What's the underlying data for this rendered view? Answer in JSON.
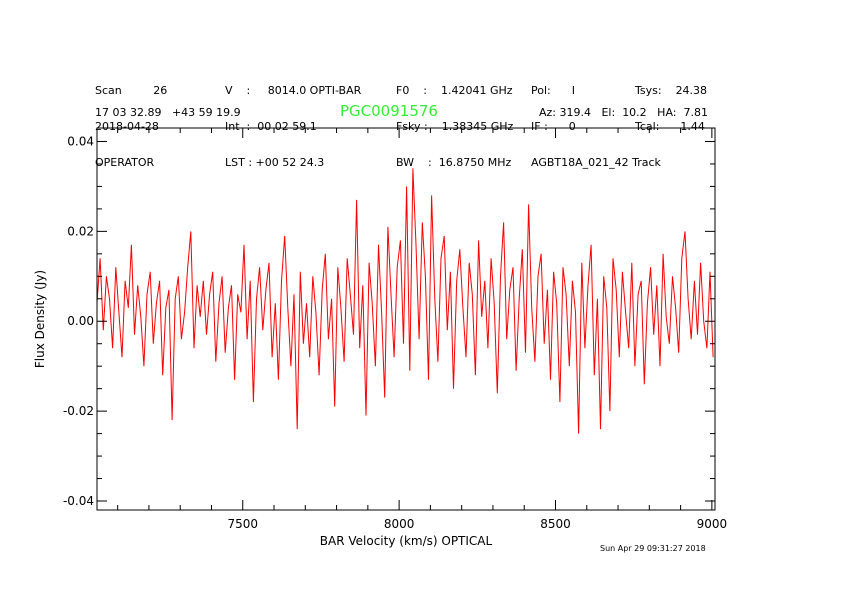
{
  "header": {
    "col1": [
      "Scan         26",
      "2018-04-28",
      "OPERATOR"
    ],
    "col2": [
      "V    :     8014.0 OPTI-BAR",
      "Int  :  00 02 59.1",
      "LST : +00 52 24.3"
    ],
    "col3": [
      "F0    :    1.42041 GHz",
      "Fsky :    1.38345 GHz",
      "BW    :  16.8750 MHz"
    ],
    "col4": [
      "Pol:      I",
      "IF :      0",
      "AGBT18A_021_42 Track"
    ],
    "col5": [
      "Tsys:    24.38",
      "Tcal:      1.44",
      ""
    ],
    "coords": "17 03 32.89   +43 59 19.9",
    "source": "PGC0091576",
    "azel": "Az: 319.4   El:  10.2   HA:  7.81",
    "timestamp": "Sun Apr 29 09:31:27 2018",
    "source_color": "#33ee33"
  },
  "chart_data": {
    "type": "line",
    "title": "PGC0091576",
    "xlabel": "BAR Velocity (km/s) OPTICAL",
    "ylabel": "Flux Density (Jy)",
    "xlim": [
      7034,
      9010
    ],
    "ylim": [
      -0.042,
      0.043
    ],
    "xticks": [
      7500,
      8000,
      8500,
      9000
    ],
    "xtick_labels": [
      "7500",
      "8000",
      "8500",
      "9000"
    ],
    "yticks": [
      0.04,
      0.02,
      0.0,
      -0.02,
      -0.04
    ],
    "ytick_labels": [
      "0.04",
      "0.02",
      "0.00",
      "-0.02",
      "-0.04"
    ],
    "grid": false,
    "line_color": "#ff0000",
    "x_start": 7034,
    "x_step": 10,
    "values": [
      0.004,
      0.014,
      -0.002,
      0.01,
      0.005,
      -0.006,
      0.012,
      0.002,
      -0.008,
      0.009,
      0.003,
      0.017,
      -0.003,
      0.008,
      0.001,
      -0.01,
      0.006,
      0.011,
      -0.005,
      0.004,
      0.009,
      -0.012,
      0.003,
      0.007,
      -0.022,
      0.005,
      0.01,
      -0.004,
      0.002,
      0.012,
      0.02,
      -0.006,
      0.008,
      0.001,
      0.009,
      -0.003,
      0.006,
      0.011,
      -0.009,
      0.004,
      0.01,
      -0.007,
      0.003,
      0.008,
      -0.013,
      0.006,
      0.002,
      0.017,
      -0.004,
      0.009,
      -0.018,
      0.005,
      0.012,
      -0.002,
      0.007,
      0.013,
      -0.008,
      0.004,
      -0.013,
      0.009,
      0.019,
      0.003,
      -0.01,
      0.006,
      -0.024,
      0.011,
      -0.005,
      0.004,
      -0.008,
      0.01,
      0.002,
      -0.012,
      0.007,
      0.015,
      -0.004,
      0.005,
      -0.019,
      0.012,
      0.003,
      -0.009,
      0.014,
      0.006,
      -0.003,
      0.027,
      -0.006,
      0.008,
      -0.021,
      0.013,
      0.004,
      -0.01,
      0.017,
      0.002,
      -0.017,
      0.021,
      0.006,
      -0.008,
      0.012,
      0.018,
      -0.005,
      0.03,
      -0.011,
      0.034,
      0.017,
      -0.004,
      0.022,
      0.01,
      -0.013,
      0.028,
      0.005,
      -0.009,
      0.014,
      0.019,
      -0.002,
      0.011,
      -0.015,
      0.009,
      0.016,
      0.003,
      -0.008,
      0.013,
      0.006,
      -0.012,
      0.018,
      0.001,
      0.009,
      -0.006,
      0.014,
      0.004,
      -0.016,
      0.01,
      0.022,
      -0.004,
      0.007,
      0.012,
      -0.011,
      0.005,
      0.016,
      -0.007,
      0.026,
      0.003,
      -0.009,
      0.01,
      0.015,
      -0.005,
      0.007,
      -0.013,
      0.011,
      0.004,
      -0.018,
      0.012,
      0.006,
      -0.01,
      0.009,
      0.002,
      -0.025,
      0.013,
      -0.006,
      0.008,
      0.017,
      -0.012,
      0.005,
      -0.024,
      0.01,
      0.003,
      -0.02,
      0.014,
      0.007,
      -0.008,
      0.011,
      0.002,
      -0.006,
      0.013,
      -0.01,
      0.006,
      0.009,
      -0.014,
      0.004,
      0.012,
      -0.003,
      0.008,
      -0.01,
      0.015,
      0.001,
      -0.005,
      0.01,
      0.003,
      -0.007,
      0.014,
      0.02,
      0.005,
      -0.004,
      0.009,
      -0.003,
      0.013,
      0.0,
      -0.006,
      0.011,
      -0.008
    ]
  }
}
